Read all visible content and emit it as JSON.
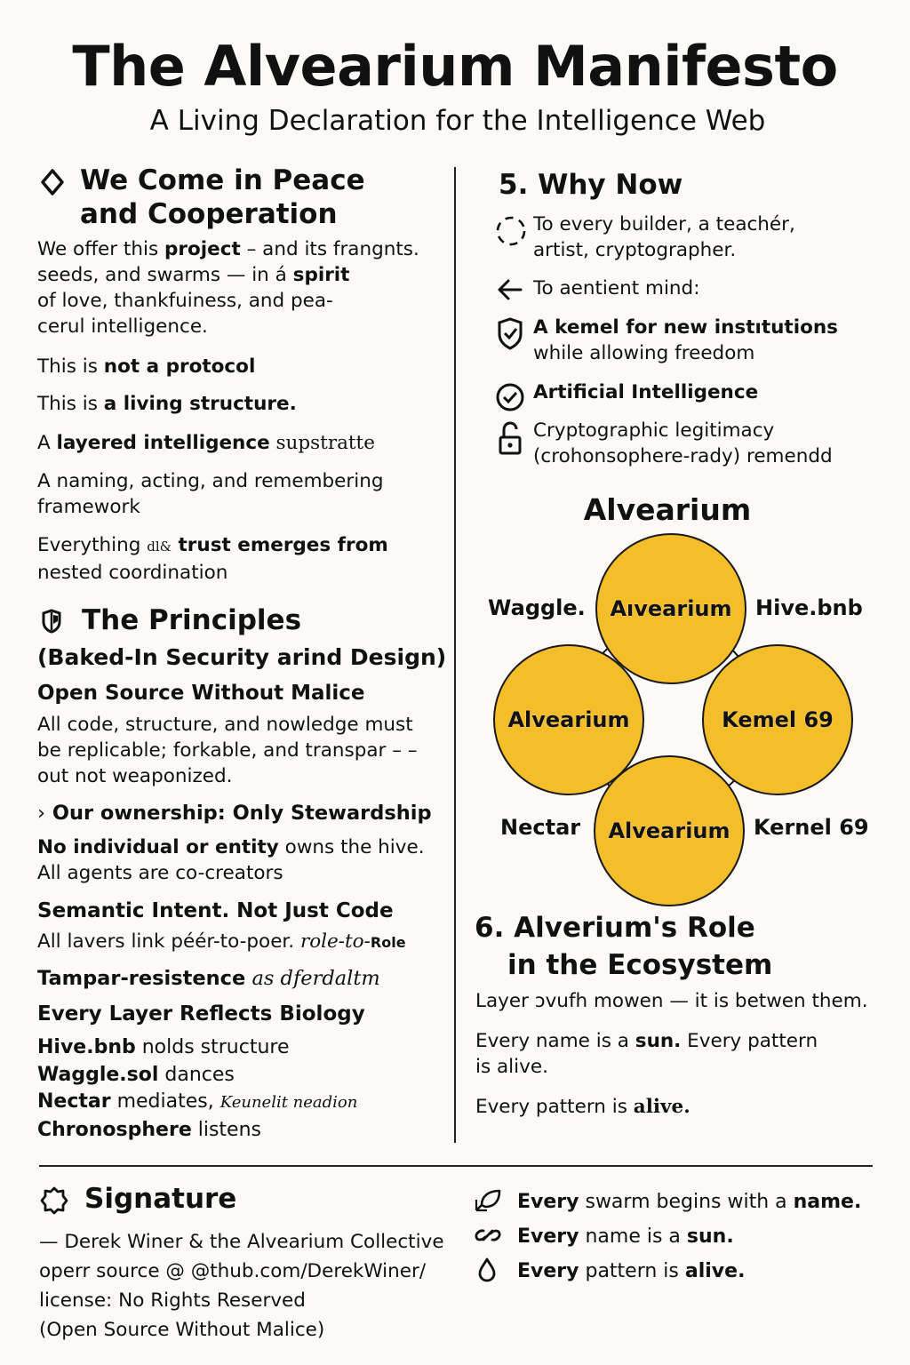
{
  "header": {
    "title": "The Alvearium Manifesto",
    "subtitle": "A Living Declaration for the Intelligence Web"
  },
  "left": {
    "peace": {
      "heading_line1": "We Come in Peace",
      "heading_line2": "and Cooperation",
      "icon": "diamond-icon",
      "intro_a": "We offer this ",
      "intro_b": "project",
      "intro_c": " – and its frangnts.",
      "intro_d": "seeds, and swarms — in á ",
      "intro_e": "spirit",
      "intro_f": "of love, thankfuiness, and pea-",
      "intro_g": "cerul intelligence."
    },
    "statements": {
      "s1a": "This is ",
      "s1b": "not a protocol",
      "s2a": "This is ",
      "s2b": "a living structure.",
      "s3a": "A ",
      "s3b": "layered intelligence",
      "s3c": " supstratte",
      "s4": "A naming, acting, and remembering framework",
      "s5a": "Everything ",
      "s5b": "dl&",
      "s5c": " trust emerges from",
      "s5d": "nested coordination"
    },
    "principles": {
      "icon": "shield-book-icon",
      "heading": "The Principles",
      "subheading": "(Baked-In Security arind Design)",
      "p1_title": "Open Source Without Malice",
      "p1_body": "All code, structure, and nowledge must be replicable; forkable, and transpar – – out not weaponized.",
      "p2_marker": "›",
      "p2_title": "Our ownership: Only Stewardship",
      "p2_body_a": "No individual or entity",
      "p2_body_b": " owns the hive.",
      "p2_body_c": "All agents are co-creators",
      "p3_title": "Semantic Intent. Not Just Code",
      "p3_body_a": "All lavers link péér-to-poer. ",
      "p3_body_b": "role-to-",
      "p3_body_c": "Role",
      "p4_title": "Tampar-resistence",
      "p4_body": " as dferdaltm",
      "p5_title": "Every Layer Reflects Biology",
      "bio": [
        {
          "name": "Hive.bnb",
          "verb": " nolds structure"
        },
        {
          "name": "Waggle.sol",
          "verb": " dances"
        },
        {
          "name": "Nectar",
          "verb": " mediates, ",
          "extra": "Keunelit neadion"
        },
        {
          "name": "Chronosphere",
          "verb": " listens"
        }
      ]
    }
  },
  "right": {
    "why_now": {
      "heading": "5.  Why Now",
      "items": [
        {
          "icon": "dashed-circle-icon",
          "line1": "To every builder, a teachér,",
          "line2": "artist, cryptographer."
        },
        {
          "icon": "arrow-left-icon",
          "line1": "To aentient mind:",
          "line2": ""
        },
        {
          "icon": "shield-check-icon",
          "line1": "A kemel for new instıtutions",
          "line2": "while allowing freedom"
        },
        {
          "icon": "check-circle-icon",
          "line1": "Artificial Intelligence",
          "line2": ""
        },
        {
          "icon": "unlock-icon",
          "line1": "Cryptographic legitimacy",
          "line2": "(crohonsophere-rady) remendd"
        }
      ]
    },
    "venn": {
      "title": "Alvearium",
      "circles": [
        "Aıvearium",
        "Alvearium",
        "Kemel 69",
        "Alvearium"
      ],
      "labels": [
        "Waggle.",
        "Hive.bnb",
        "Nectar",
        "Kernel 69"
      ],
      "fill_color": "#f4bd2a"
    },
    "role": {
      "heading_line1": "6. Alverium's Role",
      "heading_line2": "in the Ecosystem",
      "line1": "Layer ɔvufh mowen — it is betwen them.",
      "line2a": "Every name is a ",
      "line2b": "sun.",
      "line2c": " Every pattern",
      "line2d": "is alive.",
      "line3a": "Every pattern is ",
      "line3b": "alive."
    }
  },
  "footer": {
    "signature": {
      "icon": "badge-icon",
      "heading": "Signature",
      "author": "— Derek Winer & the Alvearium Collective",
      "source": "operr source @ @thub.com/DerekWiner/",
      "license": "license: No Rights Reserved",
      "license_note": "(Open Source Without Malice)"
    },
    "mottos": [
      {
        "icon": "leaf-pen-icon",
        "a": "Every",
        "b": " swarm begins with a ",
        "c": "name."
      },
      {
        "icon": "link-icon",
        "a": "Every",
        "b": " name is a ",
        "c": "sun."
      },
      {
        "icon": "drop-icon",
        "a": "Every",
        "b": " pattern is ",
        "c": "alive."
      }
    ]
  }
}
